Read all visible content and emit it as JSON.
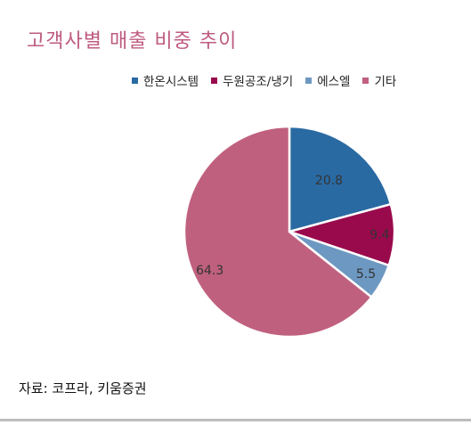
{
  "title": "고객사별 매출 비중 추이",
  "source": "자료: 코프라, 키움증권",
  "chart_data": {
    "type": "pie",
    "title": "고객사별 매출 비중 추이",
    "categories": [
      "한온시스템",
      "두원공조/냉기",
      "에스엘",
      "기타"
    ],
    "values": [
      20.8,
      9.4,
      5.5,
      64.3
    ],
    "data_labels": [
      "20.8",
      "9.4",
      "5.5",
      "64.3"
    ],
    "colors": [
      "#2a6aa3",
      "#990a4c",
      "#6d98c1",
      "#c0607f"
    ],
    "legend_position": "top"
  }
}
